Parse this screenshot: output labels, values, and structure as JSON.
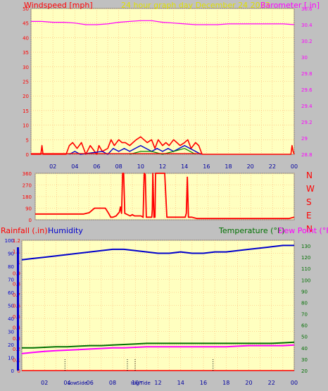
{
  "header": {
    "windspeed_label": "Windspeed [mph]",
    "title": "24 hour graph day   December 24 2023",
    "barometer_label": "Barometer [.in]"
  },
  "colors": {
    "background": "#c0c0c0",
    "plot_bg": "#ffffc0",
    "grid": "#ffb070",
    "wind": "#ff0000",
    "gust": "#0000cc",
    "wind_green": "#008000",
    "baro": "#ff00ff",
    "humidity": "#0000cc",
    "temperature": "#007000",
    "dewpoint": "#ff00ff",
    "direction": "#ff0000",
    "title_color": "#e0e000",
    "axis_blue": "#0000a0"
  },
  "time_axis": [
    "02",
    "04",
    "06",
    "08",
    "10",
    "12",
    "14",
    "16",
    "18",
    "20",
    "22",
    "00"
  ],
  "direction_axis": {
    "ticks": [
      "360",
      "270",
      "180",
      "90",
      "0"
    ],
    "compass": [
      "N",
      "W",
      "S",
      "E",
      "N"
    ]
  },
  "bottom_header": {
    "rainfall_label": "Rainfall (.in)",
    "humidity_label": "Humidity",
    "temperature_label": "Temperature (°F)",
    "dewpoint_label": "Dew Point (°F)"
  },
  "markers": {
    "low_label": "Low",
    "side_label": "Side",
    "high_label": "High",
    "tide_label": "Tide"
  },
  "chart_data": [
    {
      "type": "line",
      "id": "wind_baro",
      "title": "24 hour graph day   December 24 2023",
      "ylabel": "Windspeed [mph]",
      "ylabel_right": "Barometer [.in]",
      "ylim": [
        0,
        50
      ],
      "yticks": [
        "50",
        "45",
        "40",
        "35",
        "30",
        "25",
        "20",
        "15",
        "10",
        "5",
        "0"
      ],
      "ylim_right": [
        28.8,
        30.6
      ],
      "yticks_right": [
        "30.6",
        "30.4",
        "30.2",
        "30",
        "29.8",
        "29.6",
        "29.4",
        "29.2",
        "29",
        "28.8"
      ],
      "x_hours": [
        0,
        24
      ],
      "series": [
        {
          "name": "Barometer [.in]",
          "axis": "right",
          "x": [
            0,
            1,
            2,
            3,
            4,
            5,
            6,
            7,
            8,
            9,
            10,
            11,
            12,
            13,
            14,
            15,
            16,
            17,
            18,
            19,
            20,
            21,
            22,
            23,
            24
          ],
          "values": [
            30.44,
            30.44,
            30.43,
            30.43,
            30.42,
            30.4,
            30.4,
            30.41,
            30.43,
            30.44,
            30.45,
            30.45,
            30.43,
            30.42,
            30.41,
            30.4,
            30.4,
            30.4,
            30.41,
            30.41,
            30.41,
            30.41,
            30.41,
            30.41,
            30.4
          ]
        },
        {
          "x": [
            0,
            0.9,
            1,
            1.1,
            3.2,
            3.5,
            3.8,
            4.2,
            4.6,
            5,
            5.4,
            6,
            6.2,
            6.5,
            7,
            7.3,
            7.6,
            8,
            8.3,
            8.6,
            9,
            9.3,
            9.6,
            10,
            10.3,
            10.6,
            11,
            11.3,
            11.6,
            12,
            12.3,
            12.6,
            13,
            13.3,
            13.6,
            14,
            14.3,
            14.6,
            15,
            15.3,
            15.6,
            23.7,
            23.8,
            23.9,
            24
          ],
          "values": [
            0,
            0,
            3,
            0,
            0,
            3,
            4,
            2,
            4,
            0,
            3,
            0,
            3,
            1,
            2,
            5,
            3,
            5,
            4,
            4,
            3,
            4,
            5,
            6,
            5,
            4,
            5,
            2,
            5,
            3,
            4,
            3,
            5,
            4,
            3,
            4,
            5,
            2,
            4,
            3,
            0,
            0,
            3,
            1,
            0
          ]
        },
        {
          "x": [
            3.5,
            4,
            4.5,
            6.5,
            7,
            7.5,
            8,
            8.5,
            9,
            9.5,
            10,
            10.5,
            11,
            11.5,
            12,
            12.5,
            13,
            13.5,
            14,
            14.5,
            15,
            15.5
          ],
          "values": [
            0,
            1,
            0,
            1,
            0,
            2,
            1,
            2,
            1,
            2,
            3,
            2,
            1,
            2,
            1,
            2,
            1,
            2,
            3,
            2,
            1,
            0
          ]
        },
        {
          "x": [
            9,
            10,
            11,
            12,
            13,
            14,
            15
          ],
          "values": [
            0,
            1,
            1,
            0,
            1,
            2,
            0
          ]
        }
      ]
    },
    {
      "type": "line",
      "id": "wind_direction",
      "ylim": [
        0,
        360
      ],
      "yticks": [
        "360",
        "270",
        "180",
        "90",
        "0"
      ],
      "series": [
        {
          "x": [
            0,
            4.5,
            5,
            5.5,
            6.5,
            6.8,
            7,
            7.2,
            7.5,
            7.8,
            7.9,
            8,
            8.1,
            8.2,
            8.3,
            8.8,
            9,
            9.2,
            9.8,
            10,
            10.1,
            10.2,
            10.3,
            10.4,
            10.6,
            10.8,
            10.85,
            10.9,
            11,
            11.1,
            11.15,
            11.2,
            11.3,
            11.4,
            11.5,
            11.6,
            11.7,
            12,
            12.2,
            12.3,
            12.35,
            12.4,
            13.9,
            14,
            14.1,
            14.2,
            14.3,
            14.5,
            15,
            18,
            21,
            23.5,
            24
          ],
          "values": [
            45,
            45,
            55,
            90,
            90,
            50,
            20,
            20,
            30,
            60,
            100,
            50,
            360,
            360,
            50,
            30,
            40,
            30,
            30,
            20,
            360,
            350,
            20,
            20,
            20,
            20,
            80,
            360,
            20,
            20,
            360,
            360,
            360,
            360,
            360,
            360,
            360,
            360,
            20,
            20,
            20,
            20,
            20,
            50,
            330,
            20,
            20,
            20,
            10,
            10,
            10,
            10,
            20
          ]
        }
      ]
    },
    {
      "type": "line",
      "id": "temp_hum",
      "ylabel": "Rainfall (.in)",
      "ylabel_right": "Temperature (°F)",
      "ylim_rain": [
        0,
        1.2
      ],
      "yticks_rain": [
        "1.2",
        "1.1",
        "1",
        "0.9",
        "0.8",
        "0.7",
        "0.6",
        "0.5",
        "0.4",
        "0.3",
        "0.2",
        "0.1",
        "0"
      ],
      "ylim_hum": [
        0,
        100
      ],
      "yticks_hum": [
        "100",
        "90",
        "80",
        "70",
        "60",
        "50",
        "40",
        "30",
        "20",
        "10",
        "0"
      ],
      "ylim_temp": [
        20,
        135
      ],
      "yticks_temp": [
        "130",
        "120",
        "110",
        "100",
        "90",
        "80",
        "70",
        "60",
        "50",
        "40",
        "30",
        "20"
      ],
      "series": [
        {
          "name": "Humidity",
          "axis": "humidity",
          "x": [
            0,
            1,
            2,
            3,
            4,
            5,
            6,
            7,
            8,
            9,
            10,
            11,
            12,
            13,
            14,
            15,
            16,
            17,
            18,
            19,
            20,
            21,
            22,
            23,
            24
          ],
          "values": [
            85,
            86,
            87,
            88,
            89,
            90,
            91,
            92,
            93,
            93,
            92,
            91,
            90,
            90,
            91,
            90,
            90,
            91,
            91,
            92,
            93,
            94,
            95,
            96,
            96
          ]
        },
        {
          "name": "Temperature (°F)",
          "axis": "temp",
          "x": [
            0,
            1,
            2,
            3,
            4,
            5,
            6,
            7,
            8,
            9,
            10,
            11,
            12,
            13,
            14,
            15,
            16,
            17,
            18,
            19,
            20,
            21,
            22,
            23,
            24
          ],
          "values": [
            40,
            40,
            40.5,
            41,
            41,
            41.5,
            42,
            42,
            42.5,
            43,
            43.5,
            44,
            44,
            44,
            44,
            44,
            44,
            44,
            44,
            44,
            44,
            44,
            44,
            44.5,
            45
          ]
        },
        {
          "name": "Dew Point (°F)",
          "axis": "temp",
          "x": [
            0,
            1,
            2,
            3,
            4,
            5,
            6,
            7,
            8,
            9,
            10,
            11,
            12,
            13,
            14,
            15,
            16,
            17,
            18,
            19,
            20,
            21,
            22,
            23,
            24
          ],
          "values": [
            35,
            36,
            37,
            37.5,
            38,
            38.5,
            39,
            39.5,
            40,
            40,
            40.5,
            41,
            41,
            41,
            41,
            41,
            41,
            41,
            41,
            41.5,
            42,
            42,
            42,
            42,
            42.5
          ]
        },
        {
          "name": "Rainfall (.in)",
          "axis": "rain",
          "x": [
            0,
            24
          ],
          "values": [
            0,
            0
          ]
        }
      ]
    }
  ]
}
